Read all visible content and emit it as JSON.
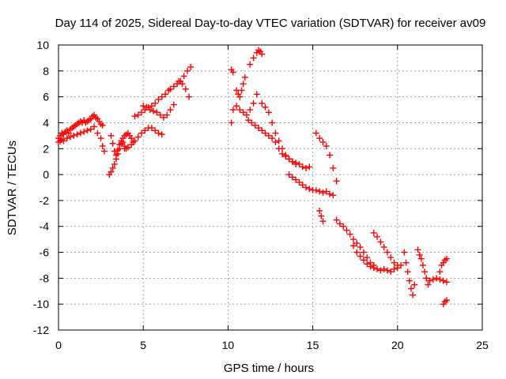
{
  "chart_data": {
    "type": "scatter",
    "title": "Day 114 of 2025, Sidereal Day-to-day VTEC variation (SDTVAR) for receiver av09",
    "xlabel": "GPS time / hours",
    "ylabel": "SDTVAR / TECUs",
    "xlim": [
      0,
      25
    ],
    "ylim": [
      -12,
      10
    ],
    "x_ticks": [
      0,
      5,
      10,
      15,
      20,
      25
    ],
    "y_ticks": [
      -12,
      -10,
      -8,
      -6,
      -4,
      -2,
      0,
      2,
      4,
      6,
      8,
      10
    ],
    "grid": true,
    "marker": "+",
    "series": [
      {
        "name": "SDTVAR",
        "color": "#ff0000",
        "x": [
          0.0,
          0.1,
          0.2,
          0.3,
          0.4,
          0.5,
          0.6,
          0.7,
          0.8,
          0.9,
          1.0,
          1.1,
          1.2,
          1.3,
          1.4,
          1.5,
          1.6,
          1.7,
          1.8,
          1.9,
          2.0,
          2.1,
          2.2,
          2.3,
          2.4,
          2.5,
          2.6,
          0.0,
          0.1,
          0.2,
          0.3,
          0.5,
          0.7,
          0.9,
          1.1,
          1.3,
          1.5,
          1.7,
          1.9,
          2.1,
          2.3,
          2.5,
          2.6,
          2.7,
          3.0,
          3.1,
          3.2,
          3.3,
          3.4,
          3.5,
          3.6,
          3.7,
          3.8,
          3.9,
          4.0,
          4.1,
          4.2,
          4.3,
          4.4,
          3.1,
          3.2,
          3.3,
          3.4,
          3.5,
          3.6,
          3.7,
          3.8,
          3.9,
          4.0,
          3.9,
          4.1,
          4.3,
          4.5,
          4.7,
          4.9,
          5.1,
          5.3,
          5.5,
          5.7,
          5.9,
          6.1,
          4.5,
          4.7,
          4.9,
          5.1,
          5.3,
          5.5,
          5.7,
          5.9,
          6.1,
          6.3,
          6.5,
          5.0,
          5.2,
          5.4,
          5.6,
          5.8,
          6.0,
          6.2,
          6.4,
          6.6,
          6.8,
          6.6,
          6.8,
          7.0,
          7.2,
          7.4,
          7.6,
          7.8,
          7.1,
          7.3,
          7.5,
          7.7,
          10.2,
          10.3,
          10.5,
          10.6,
          10.7,
          10.8,
          10.9,
          11.0,
          10.2,
          10.3,
          10.5,
          10.7,
          10.9,
          11.1,
          11.3,
          11.5,
          11.7,
          11.3,
          11.5,
          11.7,
          11.8,
          11.9,
          12.0,
          11.2,
          11.4,
          11.6,
          11.8,
          12.0,
          12.2,
          12.4,
          12.6,
          12.8,
          13.0,
          13.2,
          13.4,
          13.6,
          13.8,
          14.0,
          12.0,
          12.2,
          12.4,
          12.6,
          12.8,
          13.0,
          13.2,
          13.4,
          13.6,
          13.8,
          14.0,
          14.2,
          14.4,
          14.6,
          14.8,
          13.6,
          13.8,
          14.0,
          14.2,
          14.4,
          14.6,
          14.8,
          15.0,
          15.2,
          15.4,
          15.6,
          15.8,
          16.0,
          16.2,
          15.2,
          15.4,
          15.6,
          15.8,
          16.0,
          16.2,
          16.4,
          15.4,
          15.5,
          15.6,
          16.4,
          16.6,
          16.8,
          17.0,
          17.2,
          17.4,
          17.6,
          17.8,
          18.0,
          18.2,
          18.4,
          18.6,
          17.4,
          17.6,
          17.8,
          18.0,
          18.2,
          18.4,
          18.6,
          18.8,
          19.0,
          19.2,
          19.4,
          19.6,
          19.8,
          20.0,
          20.2,
          18.6,
          18.8,
          19.0,
          19.2,
          19.4,
          19.6,
          19.8,
          20.0,
          20.4,
          20.5,
          20.6,
          20.7,
          20.8,
          20.9,
          21.0,
          21.2,
          21.3,
          21.4,
          21.5,
          21.6,
          21.7,
          21.8,
          21.7,
          21.9,
          22.1,
          22.3,
          22.5,
          22.7,
          22.9,
          22.5,
          22.6,
          22.7,
          22.8,
          22.9,
          22.7,
          22.8,
          22.9
        ],
        "y": [
          2.8,
          3.0,
          3.2,
          3.1,
          3.3,
          3.4,
          3.2,
          3.5,
          3.6,
          3.7,
          3.8,
          3.9,
          4.0,
          4.1,
          4.0,
          4.2,
          4.0,
          4.1,
          4.2,
          4.3,
          4.5,
          4.6,
          4.4,
          4.3,
          4.1,
          3.9,
          3.8,
          2.5,
          2.6,
          2.7,
          2.6,
          2.8,
          2.9,
          3.0,
          3.1,
          3.2,
          3.3,
          3.4,
          3.5,
          3.7,
          3.2,
          2.8,
          2.2,
          1.8,
          0.0,
          0.2,
          0.5,
          0.8,
          1.2,
          1.6,
          2.0,
          2.4,
          2.8,
          3.0,
          3.1,
          3.2,
          3.0,
          2.8,
          2.5,
          3.0,
          2.4,
          1.8,
          1.5,
          1.9,
          2.3,
          2.6,
          2.5,
          2.2,
          2.0,
          2.0,
          2.1,
          2.3,
          2.6,
          2.9,
          3.2,
          3.4,
          3.6,
          3.6,
          3.4,
          3.2,
          3.1,
          4.5,
          4.6,
          4.8,
          5.0,
          5.2,
          5.3,
          5.5,
          5.8,
          6.0,
          6.2,
          6.5,
          5.3,
          5.2,
          5.0,
          4.9,
          4.8,
          4.6,
          4.4,
          4.6,
          5.0,
          5.4,
          6.6,
          6.8,
          7.0,
          7.2,
          7.6,
          8.0,
          8.3,
          7.2,
          7.0,
          6.6,
          6.0,
          8.1,
          7.9,
          6.5,
          6.2,
          6.0,
          6.5,
          7.0,
          7.5,
          4.0,
          5.0,
          5.3,
          5.0,
          4.8,
          4.6,
          5.0,
          5.5,
          6.2,
          8.5,
          9.0,
          9.4,
          9.6,
          9.5,
          9.3,
          4.2,
          4.0,
          3.8,
          3.6,
          3.4,
          3.2,
          3.0,
          2.8,
          2.5,
          2.0,
          1.6,
          1.4,
          1.2,
          1.0,
          0.8,
          5.5,
          5.2,
          4.8,
          4.0,
          3.2,
          2.6,
          2.0,
          1.5,
          1.2,
          1.0,
          0.9,
          0.8,
          0.6,
          0.5,
          0.6,
          0.0,
          -0.2,
          -0.4,
          -0.6,
          -0.8,
          -1.0,
          -1.1,
          -1.2,
          -1.2,
          -1.3,
          -1.4,
          -1.3,
          -1.5,
          -1.6,
          3.2,
          2.8,
          2.5,
          2.2,
          1.5,
          0.5,
          -0.5,
          -2.8,
          -3.2,
          -3.6,
          -3.5,
          -3.8,
          -4.0,
          -4.3,
          -4.6,
          -5.0,
          -5.3,
          -5.6,
          -6.0,
          -6.4,
          -6.8,
          -7.0,
          -5.5,
          -6.0,
          -6.3,
          -6.6,
          -6.9,
          -7.1,
          -7.2,
          -7.3,
          -7.4,
          -7.3,
          -7.4,
          -7.5,
          -7.3,
          -7.2,
          -7.0,
          -4.5,
          -4.8,
          -5.2,
          -5.6,
          -6.0,
          -6.4,
          -6.8,
          -7.0,
          -6.0,
          -6.8,
          -7.5,
          -8.2,
          -8.8,
          -9.3,
          -8.5,
          -5.8,
          -6.2,
          -6.5,
          -7.0,
          -7.5,
          -8.0,
          -8.5,
          -8.0,
          -8.2,
          -8.1,
          -8.0,
          -8.1,
          -8.2,
          -8.3,
          -7.5,
          -7.0,
          -6.8,
          -6.6,
          -6.5,
          -10.0,
          -9.8,
          -9.7
        ]
      }
    ]
  }
}
